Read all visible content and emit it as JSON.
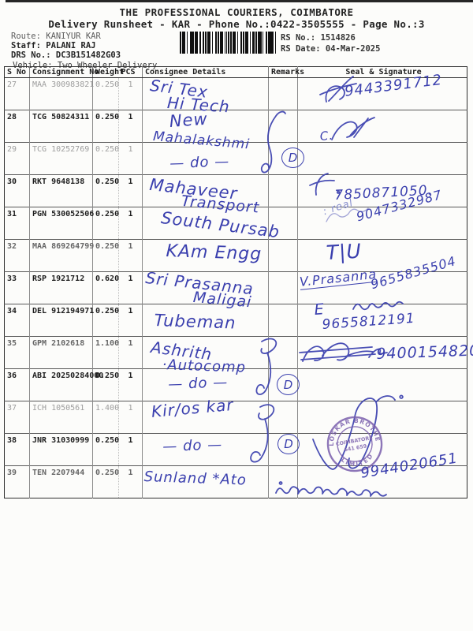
{
  "header": {
    "title": "THE PROFESSIONAL COURIERS, COIMBATORE",
    "subtitle": "Delivery Runsheet - KAR - Phone No.:0422-3505555 - Page No.:3",
    "route": "Route: KANIYUR KAR",
    "staff": "Staff: PALANI RAJ",
    "drs_no": "DRS No.: DC3B151482G03",
    "vehicle": "Vehicle: Two Wheeler Delivery",
    "rs_no": "RS No.: 1514826",
    "rs_date": "RS Date: 04-Mar-2025",
    "barcode_icon": "code128-barcode"
  },
  "table": {
    "columns": {
      "sno": "S No",
      "consignment": "Consignment No",
      "weight": "Weight",
      "pcs": "PCS",
      "consignee": "Consignee Details",
      "remarks": "Remarks",
      "seal": "Seal & Signature"
    },
    "rows": [
      {
        "sno": "27",
        "consignment": "MAA 300983821",
        "weight": "0.250",
        "pcs": "1",
        "tone": "faded"
      },
      {
        "sno": "28",
        "consignment": "TCG 50824311",
        "weight": "0.250",
        "pcs": "1",
        "tone": "dark"
      },
      {
        "sno": "29",
        "consignment": "TCG 10252769",
        "weight": "0.250",
        "pcs": "1",
        "tone": "faded"
      },
      {
        "sno": "30",
        "consignment": "RKT 9648138",
        "weight": "0.250",
        "pcs": "1",
        "tone": "dark"
      },
      {
        "sno": "31",
        "consignment": "PGN 530052506",
        "weight": "0.250",
        "pcs": "1",
        "tone": "dark"
      },
      {
        "sno": "32",
        "consignment": "MAA 869264799",
        "weight": "0.250",
        "pcs": "1",
        "tone": "mid"
      },
      {
        "sno": "33",
        "consignment": "RSP 1921712",
        "weight": "0.620",
        "pcs": "1",
        "tone": "dark"
      },
      {
        "sno": "34",
        "consignment": "DEL 912194971",
        "weight": "0.250",
        "pcs": "1",
        "tone": "dark"
      },
      {
        "sno": "35",
        "consignment": "GPM 2102618",
        "weight": "1.100",
        "pcs": "1",
        "tone": "mid"
      },
      {
        "sno": "36",
        "consignment": "ABI 20250284000",
        "weight": "0.250",
        "pcs": "1",
        "tone": "dark"
      },
      {
        "sno": "37",
        "consignment": "ICH 1050561",
        "weight": "1.400",
        "pcs": "1",
        "tone": "faded"
      },
      {
        "sno": "38",
        "consignment": "JNR 31030999",
        "weight": "0.250",
        "pcs": "1",
        "tone": "dark"
      },
      {
        "sno": "39",
        "consignment": "TEN 2207944",
        "weight": "0.250",
        "pcs": "1",
        "tone": "mid"
      }
    ]
  },
  "handwriting": {
    "c27a": "Sri Tex",
    "c27b": "Hi Tech",
    "c28a": "New",
    "c28b": "Mahalakshmi",
    "c29": "— do —",
    "c30a": "Mahaveer",
    "c30b": "Transport",
    "c31": "South Pursab",
    "c32": "KAm Engg",
    "c33a": "Sri Prasanna",
    "c33b": "Maligai",
    "c34": "Tubeman",
    "c35a": "Ashrith",
    "c35b": "·Autocomp",
    "c36": "— do —",
    "c37": "Kir/os kar",
    "c38": "— do —",
    "c39": "Sunland *Ato",
    "s27": "9443391712",
    "s28": "C.",
    "s30": "7850871050.",
    "s31a": ": real",
    "s31b": "9047332987",
    "s32": "T|U",
    "s33a": "V.Prasanna",
    "s33b": "9655835504",
    "s34a": "E",
    "s34b": "9655812191",
    "s35": "9400154820",
    "s39": "9944020651",
    "d29": "D",
    "d36": "D",
    "d38": "D"
  },
  "stamp": {
    "arc_top": "KIRLOSKAR BROTHERS",
    "arc_bottom": "LIMITED",
    "center_line1": "COIMBATORE",
    "center_line2": "641 659"
  },
  "colors": {
    "ink_blue": "#3a3fae",
    "stamp_purple": "#7a5fad",
    "print_black": "#1c1c1c"
  }
}
